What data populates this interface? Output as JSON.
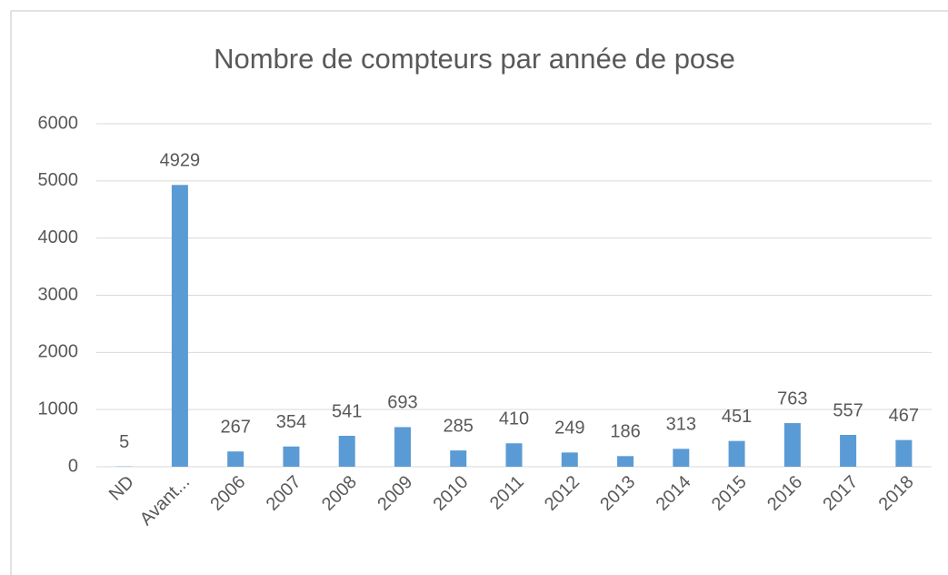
{
  "chart_data": {
    "type": "bar",
    "title": "Nombre de compteurs par année de pose",
    "categories": [
      "ND",
      "Avant...",
      "2006",
      "2007",
      "2008",
      "2009",
      "2010",
      "2011",
      "2012",
      "2013",
      "2014",
      "2015",
      "2016",
      "2017",
      "2018"
    ],
    "values": [
      5,
      4929,
      267,
      354,
      541,
      693,
      285,
      410,
      249,
      186,
      313,
      451,
      763,
      557,
      467
    ],
    "color": "#5b9bd5",
    "ylim": [
      0,
      6000
    ],
    "yticks": [
      0,
      1000,
      2000,
      3000,
      4000,
      5000,
      6000
    ],
    "grid": true
  }
}
